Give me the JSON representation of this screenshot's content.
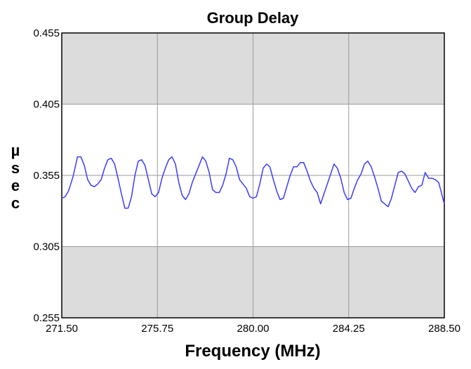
{
  "chart_data": {
    "type": "line",
    "title": "Group Delay",
    "xlabel": "Frequency (MHz)",
    "ylabel": "µsec",
    "xlim": [
      271.5,
      288.5
    ],
    "ylim": [
      0.255,
      0.455
    ],
    "xticks": [
      "271.50",
      "275.75",
      "280.00",
      "284.25",
      "288.50"
    ],
    "yticks": [
      "0.455",
      "0.405",
      "0.355",
      "0.305",
      "0.255"
    ],
    "grid": true,
    "shaded_bands": [
      {
        "from": 0.405,
        "to": 0.455,
        "color": "#dcdcdc"
      },
      {
        "from": 0.255,
        "to": 0.305,
        "color": "#dcdcdc"
      }
    ],
    "colors": {
      "series": "#3b3bff",
      "grid": "#9a9a9a",
      "axis": "#000000",
      "band": "#dcdcdc"
    },
    "series": [
      {
        "x": [
          271.5,
          271.65,
          271.8,
          272.0,
          272.2,
          272.35,
          272.5,
          272.65,
          272.8,
          272.95,
          273.1,
          273.25,
          273.4,
          273.55,
          273.7,
          273.85,
          274.0,
          274.15,
          274.3,
          274.45,
          274.6,
          274.75,
          274.9,
          275.05,
          275.2,
          275.35,
          275.5,
          275.65,
          275.8,
          275.95,
          276.1,
          276.25,
          276.4,
          276.55,
          276.7,
          276.85,
          277.0,
          277.15,
          277.3,
          277.45,
          277.6,
          277.75,
          277.9,
          278.05,
          278.2,
          278.35,
          278.5,
          278.65,
          278.8,
          278.95,
          279.1,
          279.25,
          279.4,
          279.55,
          279.7,
          279.85,
          280.0,
          280.15,
          280.3,
          280.45,
          280.6,
          280.75,
          280.9,
          281.05,
          281.2,
          281.35,
          281.5,
          281.65,
          281.8,
          281.95,
          282.1,
          282.25,
          282.4,
          282.55,
          282.7,
          282.85,
          283.0,
          283.15,
          283.3,
          283.45,
          283.6,
          283.75,
          283.9,
          284.05,
          284.2,
          284.35,
          284.5,
          284.65,
          284.8,
          284.95,
          285.1,
          285.25,
          285.4,
          285.55,
          285.7,
          285.85,
          286.0,
          286.15,
          286.3,
          286.45,
          286.6,
          286.75,
          286.9,
          287.05,
          287.2,
          287.35,
          287.5,
          287.65,
          287.8,
          287.95,
          288.1,
          288.25,
          288.5
        ],
        "y": [
          0.339,
          0.34,
          0.344,
          0.354,
          0.368,
          0.368,
          0.362,
          0.352,
          0.348,
          0.347,
          0.349,
          0.352,
          0.36,
          0.366,
          0.367,
          0.363,
          0.353,
          0.342,
          0.332,
          0.332,
          0.34,
          0.355,
          0.365,
          0.366,
          0.362,
          0.352,
          0.342,
          0.34,
          0.343,
          0.353,
          0.36,
          0.366,
          0.368,
          0.363,
          0.35,
          0.341,
          0.338,
          0.342,
          0.35,
          0.356,
          0.362,
          0.368,
          0.365,
          0.357,
          0.345,
          0.343,
          0.343,
          0.348,
          0.356,
          0.367,
          0.366,
          0.361,
          0.352,
          0.349,
          0.346,
          0.34,
          0.339,
          0.34,
          0.349,
          0.36,
          0.363,
          0.361,
          0.352,
          0.344,
          0.338,
          0.339,
          0.347,
          0.355,
          0.361,
          0.361,
          0.364,
          0.364,
          0.358,
          0.351,
          0.346,
          0.343,
          0.335,
          0.342,
          0.349,
          0.356,
          0.363,
          0.36,
          0.353,
          0.343,
          0.338,
          0.339,
          0.346,
          0.352,
          0.356,
          0.363,
          0.365,
          0.361,
          0.354,
          0.346,
          0.337,
          0.335,
          0.333,
          0.339,
          0.348,
          0.357,
          0.358,
          0.356,
          0.351,
          0.346,
          0.343,
          0.347,
          0.348,
          0.357,
          0.353,
          0.353,
          0.352,
          0.35,
          0.335
        ]
      }
    ]
  }
}
